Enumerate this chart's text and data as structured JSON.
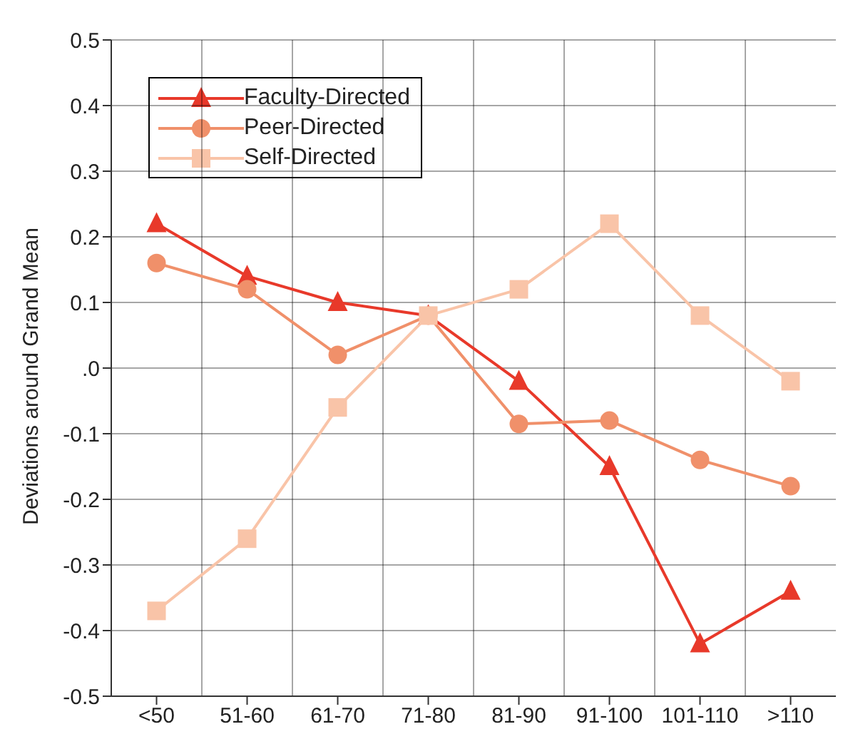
{
  "chart_data": {
    "type": "line",
    "ylabel": "Deviations around Grand Mean",
    "categories": [
      "<50",
      "51-60",
      "61-70",
      "71-80",
      "81-90",
      "91-100",
      "101-110",
      ">110"
    ],
    "series": [
      {
        "name": "Faculty-Directed",
        "color": "#e8392a",
        "marker": "triangle",
        "values": [
          0.22,
          0.14,
          0.1,
          0.08,
          -0.02,
          -0.15,
          -0.42,
          -0.34
        ]
      },
      {
        "name": "Peer-Directed",
        "color": "#f0906a",
        "marker": "circle",
        "values": [
          0.16,
          0.12,
          0.02,
          0.08,
          -0.085,
          -0.08,
          -0.14,
          -0.18
        ]
      },
      {
        "name": "Self-Directed",
        "color": "#f9c4a8",
        "marker": "square",
        "values": [
          -0.37,
          -0.26,
          -0.06,
          0.08,
          0.12,
          0.22,
          0.08,
          -0.02
        ]
      }
    ],
    "ylim": [
      -0.5,
      0.5
    ],
    "yticks": [
      {
        "value": -0.5,
        "label": "-0.5"
      },
      {
        "value": -0.4,
        "label": "-0.4"
      },
      {
        "value": -0.3,
        "label": "-0.3"
      },
      {
        "value": -0.2,
        "label": "-0.2"
      },
      {
        "value": -0.1,
        "label": "-0.1"
      },
      {
        "value": 0,
        "label": ".0"
      },
      {
        "value": 0.1,
        "label": "0.1"
      },
      {
        "value": 0.2,
        "label": "0.2"
      },
      {
        "value": 0.3,
        "label": "0.3"
      },
      {
        "value": 0.4,
        "label": "0.4"
      },
      {
        "value": 0.5,
        "label": "0.5"
      }
    ],
    "grid": true,
    "legend": "top left",
    "line_style": "solid"
  }
}
